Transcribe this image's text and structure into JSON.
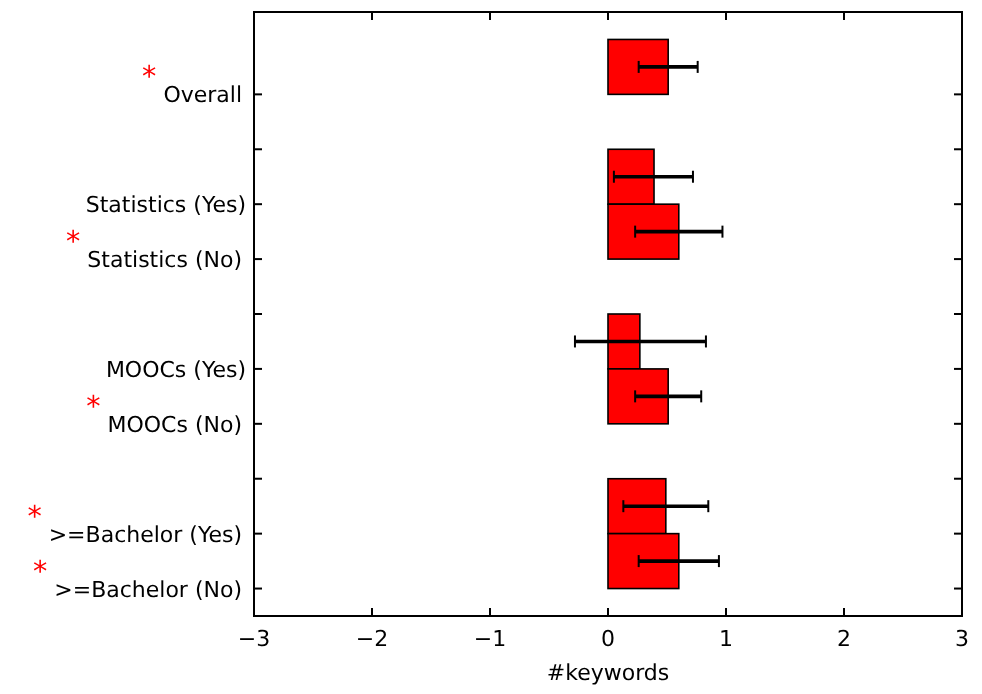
{
  "chart_data": {
    "type": "bar",
    "orientation": "horizontal",
    "xlabel": "#keywords",
    "categories": [
      "$^{*}$Overall",
      null,
      "Statistics (Yes)",
      "$^{*}$Statistics (No)",
      null,
      "MOOCs (Yes)",
      "$^{*}$MOOCs (No)",
      null,
      "$^{*}$>=Bachelor (Yes)",
      "$^{*}$>=Bachelor (No)"
    ],
    "values": [
      0.51,
      null,
      0.39,
      0.6,
      null,
      0.27,
      0.51,
      null,
      0.49,
      0.6
    ],
    "errors": [
      [
        0.26,
        0.76
      ],
      null,
      [
        0.05,
        0.72
      ],
      [
        0.23,
        0.97
      ],
      null,
      [
        -0.28,
        0.83
      ],
      [
        0.23,
        0.79
      ],
      null,
      [
        0.13,
        0.85
      ],
      [
        0.26,
        0.94
      ]
    ],
    "color": "#ff0000",
    "xlim": [
      -3,
      3
    ],
    "xticks": [
      {
        "value": -3,
        "label": "−3"
      },
      {
        "value": -2,
        "label": "−2"
      },
      {
        "value": -1,
        "label": "−1"
      },
      0,
      1,
      2,
      3
    ]
  }
}
